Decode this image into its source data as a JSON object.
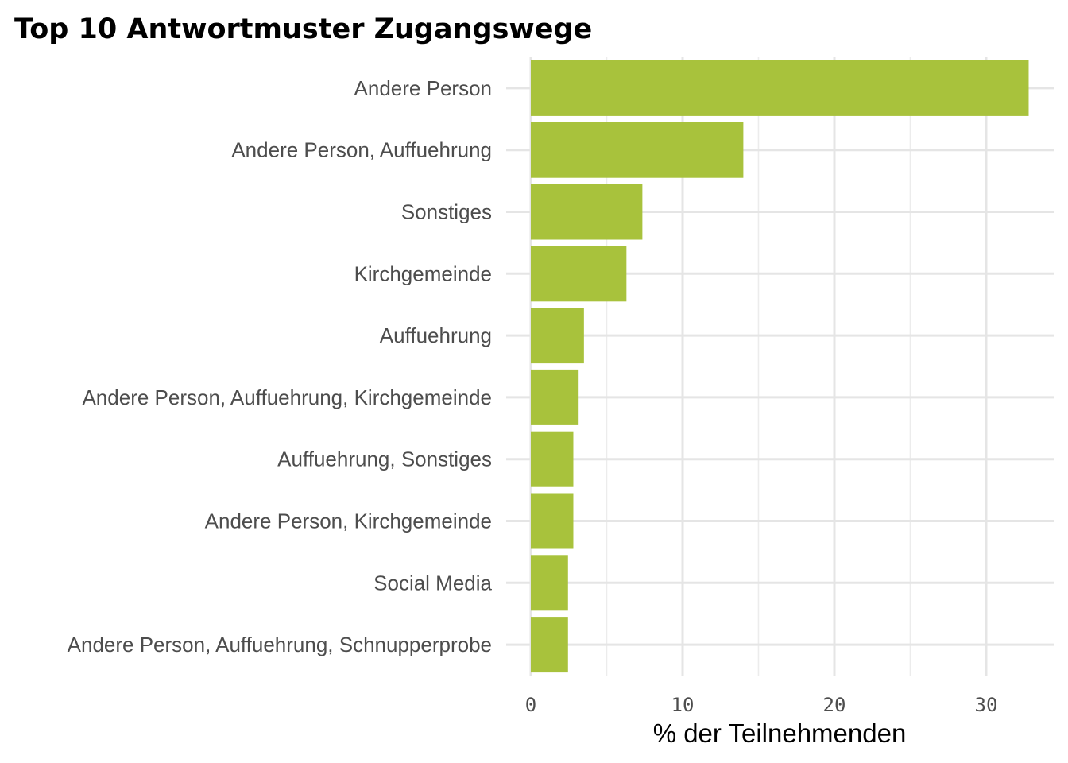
{
  "chart_data": {
    "type": "bar",
    "orientation": "horizontal",
    "title": "Top 10 Antwortmuster Zugangswege",
    "xlabel": "% der Teilnehmenden",
    "ylabel": "",
    "categories": [
      "Andere Person",
      "Andere Person, Auffuehrung",
      "Sonstiges",
      "Kirchgemeinde",
      "Auffuehrung",
      "Andere Person, Auffuehrung, Kirchgemeinde",
      "Auffuehrung, Sonstiges",
      "Andere Person, Kirchgemeinde",
      "Social Media",
      "Andere Person, Auffuehrung, Schnupperprobe"
    ],
    "values": [
      32.8,
      14.0,
      7.35,
      6.3,
      3.5,
      3.15,
      2.8,
      2.8,
      2.45,
      2.45
    ],
    "xlim": [
      0,
      34.5
    ],
    "xticks": [
      0,
      10,
      20,
      30
    ],
    "xtick_labels": [
      "0",
      "10",
      "20",
      "30"
    ],
    "bar_color": "#a8c23c",
    "grid": true
  }
}
